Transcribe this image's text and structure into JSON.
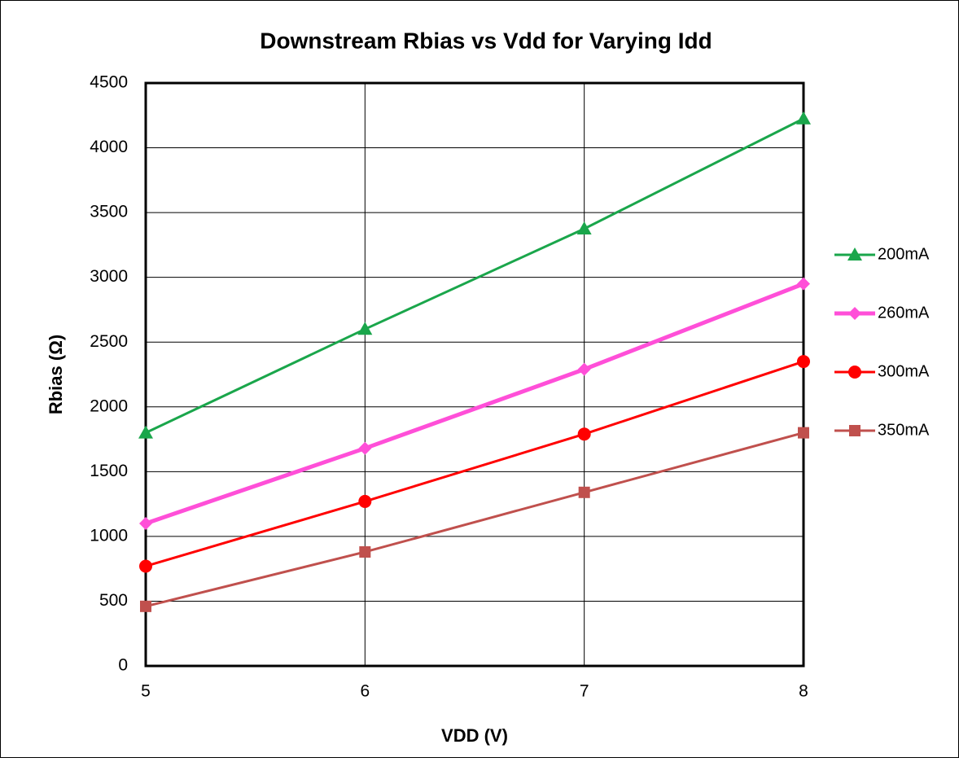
{
  "chart_data": {
    "type": "line",
    "title": "Downstream Rbias vs Vdd for Varying Idd",
    "xlabel": "VDD (V)",
    "ylabel": "Rbias (Ω)",
    "x": [
      5,
      6,
      7,
      8
    ],
    "xlim": [
      5,
      8
    ],
    "xticks": [
      5,
      6,
      7,
      8
    ],
    "ylim": [
      0,
      4500
    ],
    "yticks": [
      0,
      500,
      1000,
      1500,
      2000,
      2500,
      3000,
      3500,
      4000,
      4500
    ],
    "grid": true,
    "legend": "right",
    "series": [
      {
        "name": "200mA",
        "color": "#1aa64b",
        "marker": "triangle",
        "values": [
          1800,
          2600,
          3375,
          4225
        ]
      },
      {
        "name": "260mA",
        "color": "#ff4fd8",
        "marker": "diamond",
        "values": [
          1100,
          1680,
          2290,
          2950
        ]
      },
      {
        "name": "300mA",
        "color": "#ff0000",
        "marker": "circle",
        "values": [
          770,
          1270,
          1790,
          2350
        ]
      },
      {
        "name": "350mA",
        "color": "#c0504d",
        "marker": "square",
        "values": [
          460,
          880,
          1340,
          1800
        ]
      }
    ]
  }
}
